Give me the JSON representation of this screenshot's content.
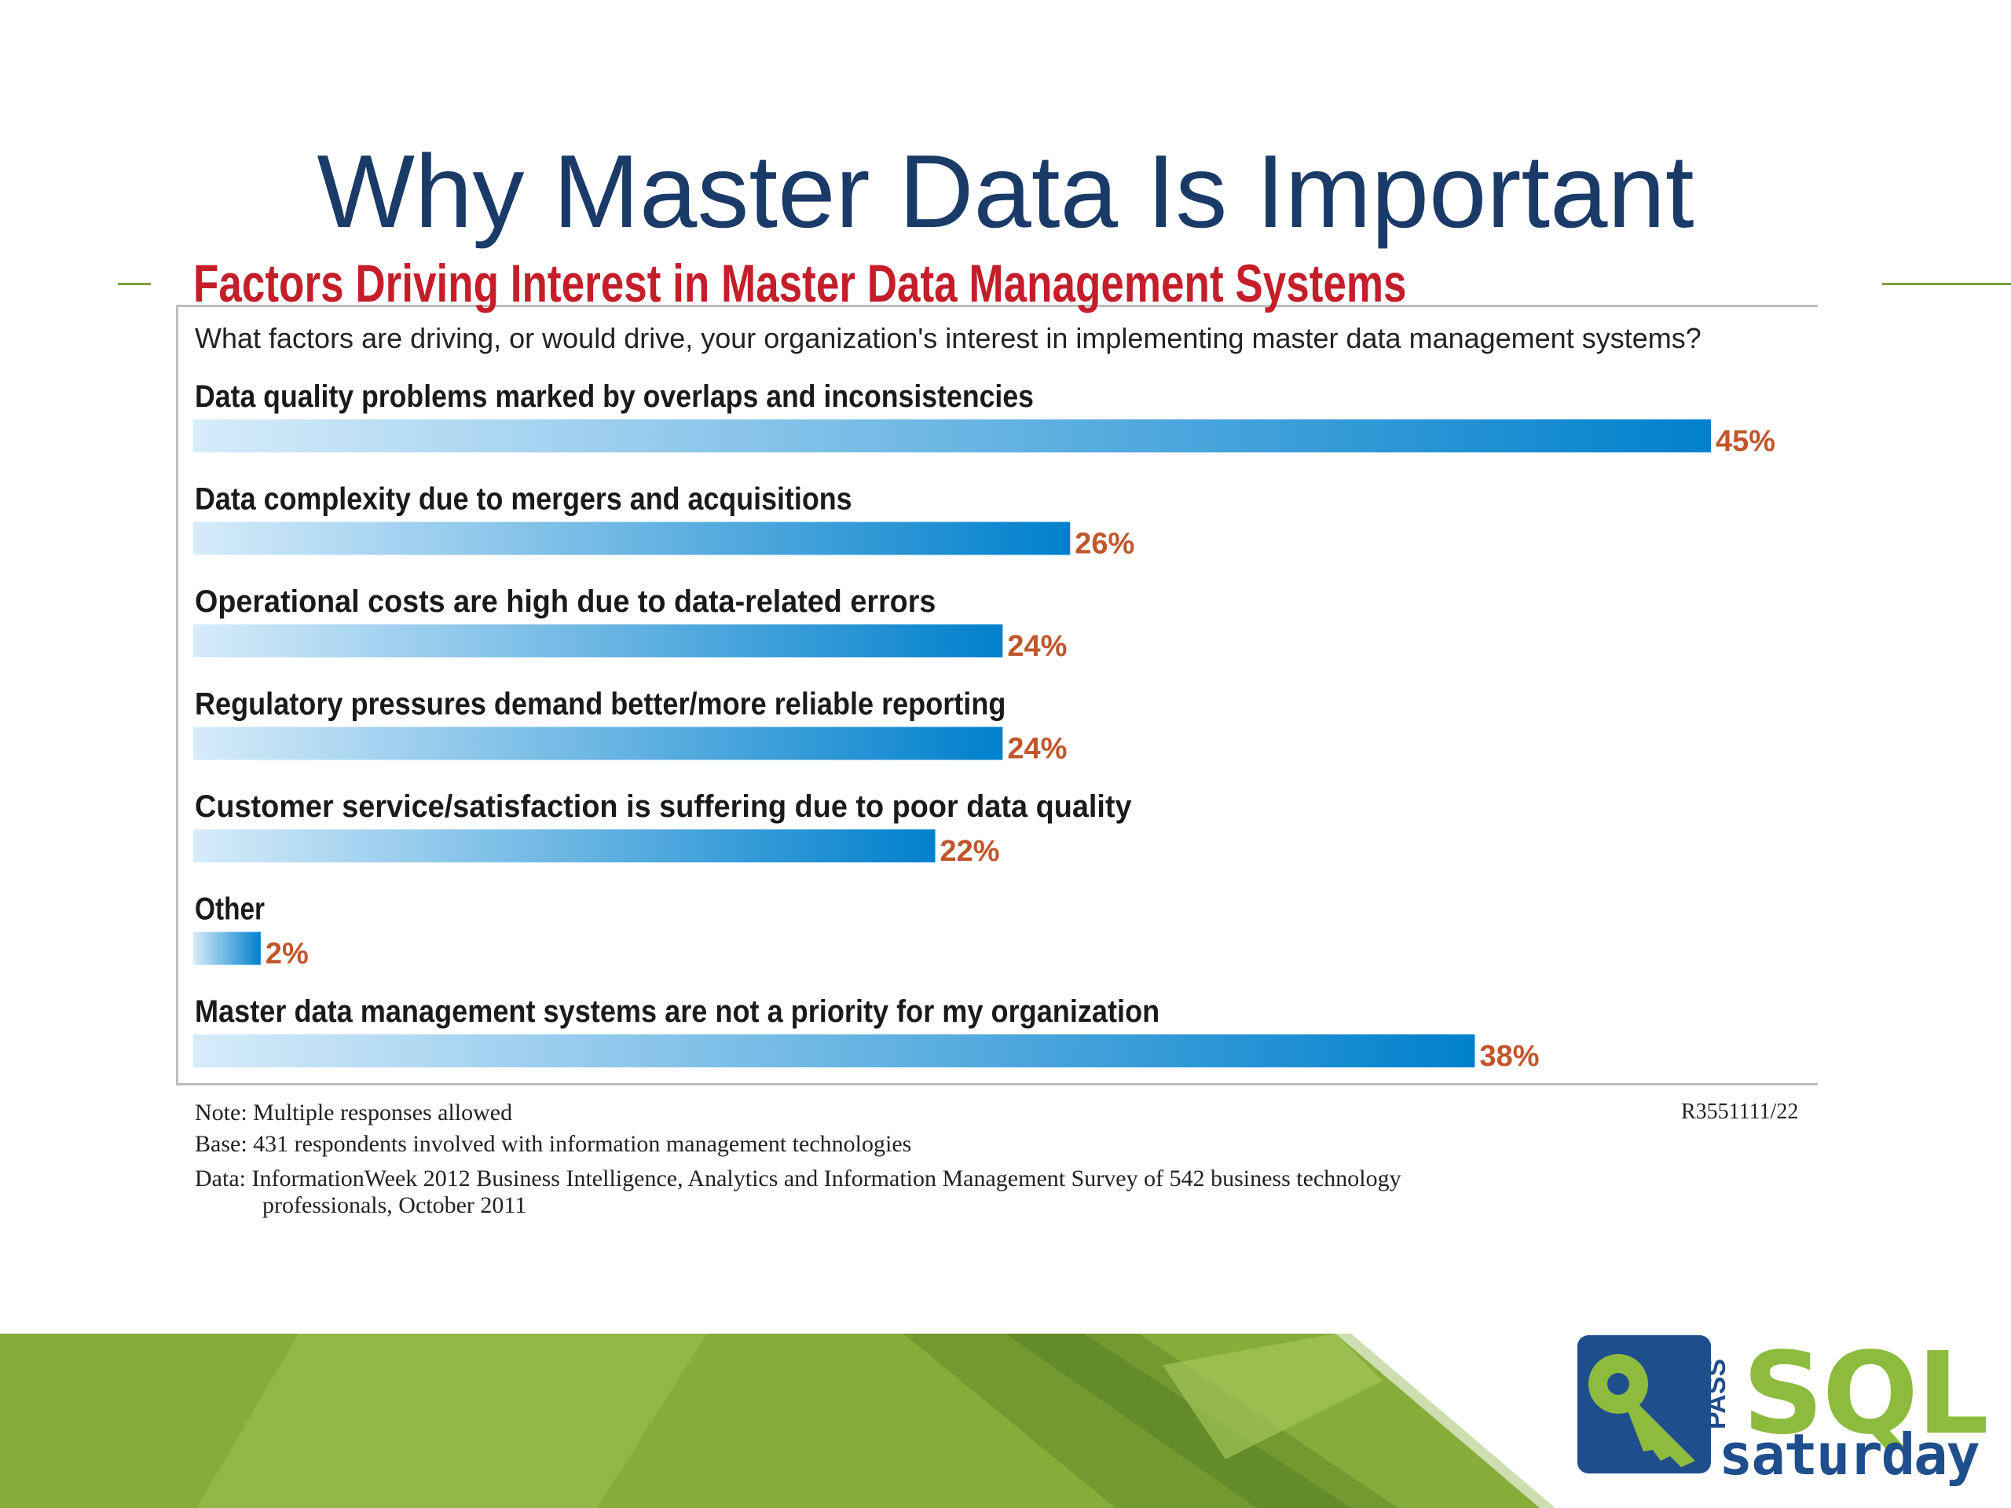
{
  "slide": {
    "title": "Why Master Data Is Important"
  },
  "chart_data": {
    "type": "bar",
    "orientation": "horizontal",
    "title": "Factors Driving Interest in Master Data Management Systems",
    "subtitle": "What factors are driving, or would drive, your organization's interest in implementing master data management systems?",
    "categories": [
      "Data quality problems marked by overlaps and inconsistencies",
      "Data complexity due to mergers and acquisitions",
      "Operational costs are high due to data-related errors",
      "Regulatory pressures demand better/more reliable reporting",
      "Customer service/satisfaction is suffering due to poor data quality",
      "Other",
      "Master data management systems are not a priority for my organization"
    ],
    "values": [
      45,
      26,
      24,
      24,
      22,
      2,
      38
    ],
    "value_labels": [
      "45%",
      "26%",
      "24%",
      "24%",
      "22%",
      "2%",
      "38%"
    ],
    "unit": "%",
    "xlim": [
      0,
      48
    ],
    "grid": false,
    "bar_color_start": "#d6ecfa",
    "bar_color_end": "#0080cc",
    "label_color": "#c0562a"
  },
  "notes": {
    "note": "Note: Multiple responses allowed",
    "base": "Base: 431 respondents involved with information management technologies",
    "data_line1": "Data: InformationWeek 2012 Business Intelligence, Analytics and Information Management Survey of 542 business technology",
    "data_line2": "professionals, October 2011",
    "code": "R3551111/22"
  },
  "logo": {
    "pass": "PASS",
    "sql": "SQL",
    "saturday": "saturday"
  },
  "colors": {
    "title": "#1a3a68",
    "chart_title": "#c41e2a",
    "accent_green": "#7aa23a",
    "logo_blue": "#1f4e8c",
    "logo_green": "#8dbb3e"
  }
}
